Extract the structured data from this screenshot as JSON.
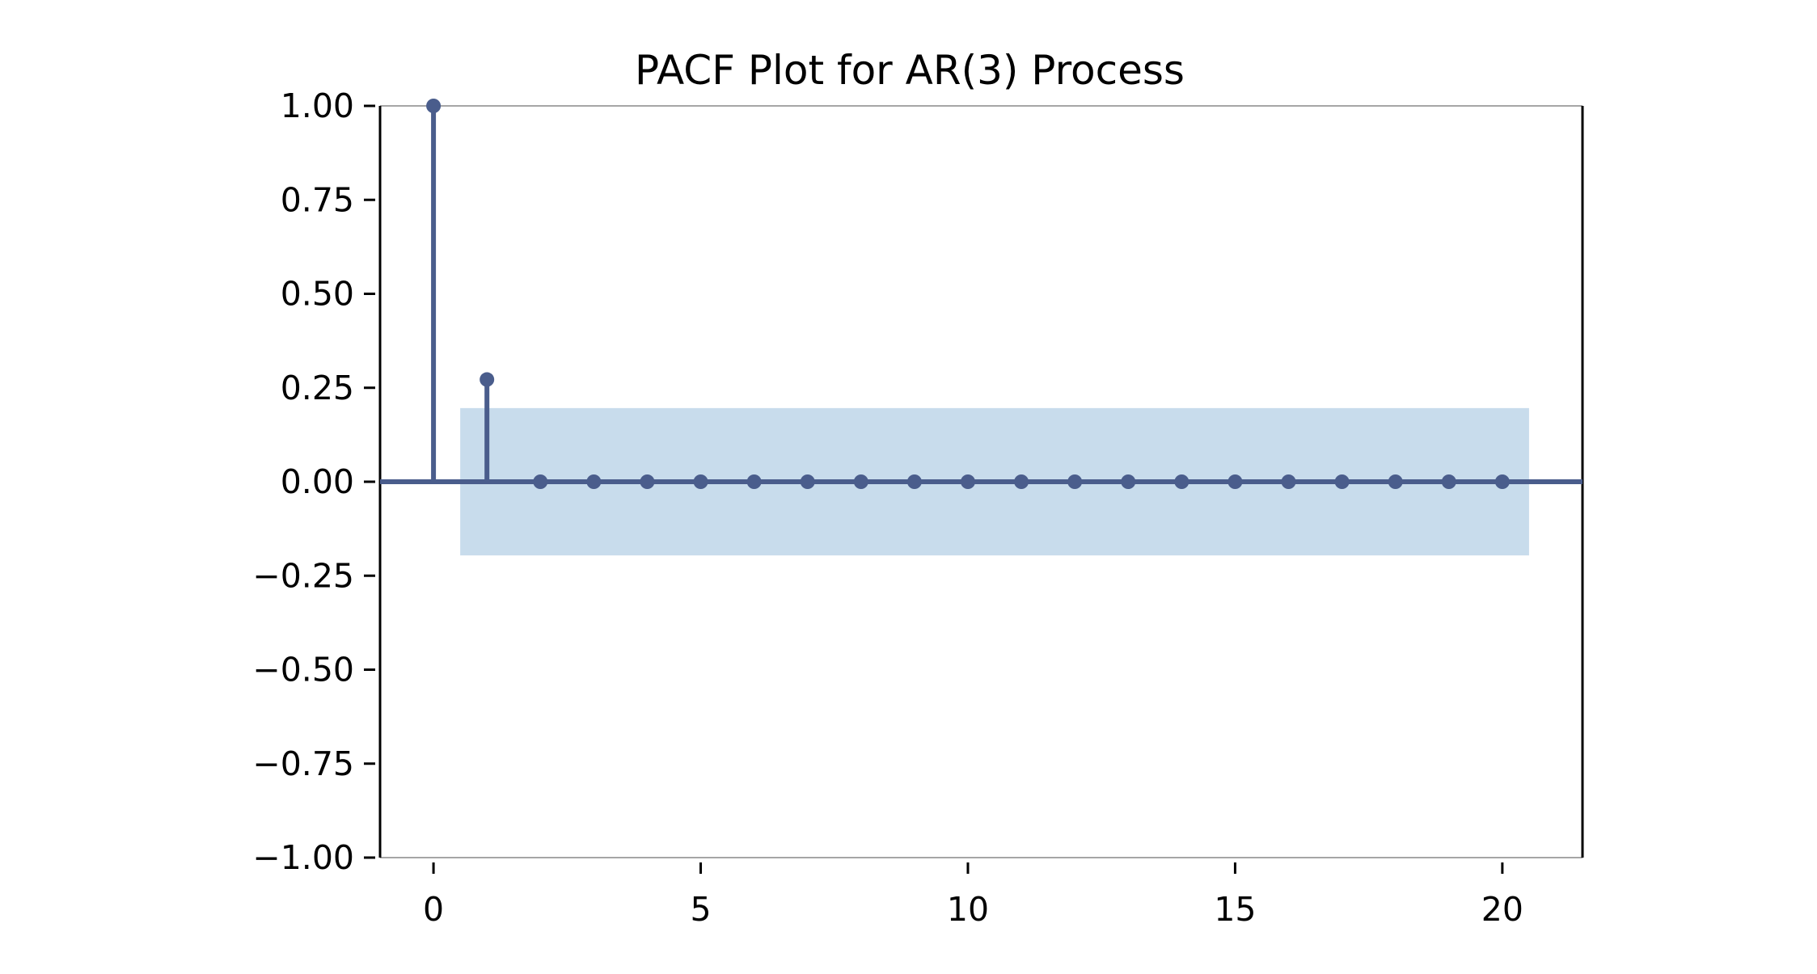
{
  "chart_data": {
    "type": "stem",
    "title": "PACF Plot for AR(3) Process",
    "xlabel": "",
    "ylabel": "",
    "x": [
      0,
      1,
      2,
      3,
      4,
      5,
      6,
      7,
      8,
      9,
      10,
      11,
      12,
      13,
      14,
      15,
      16,
      17,
      18,
      19,
      20
    ],
    "values": [
      1.0,
      0.272,
      0.0,
      0.0,
      0.0,
      0.0,
      0.0,
      0.0,
      0.0,
      0.0,
      0.0,
      0.0,
      0.0,
      0.0,
      0.0,
      0.0,
      0.0,
      0.0,
      0.0,
      0.0,
      0.0
    ],
    "confidence_band": {
      "x_range": [
        0.5,
        20.5
      ],
      "lower": -0.196,
      "upper": 0.196
    },
    "xlim": [
      -1,
      21.5
    ],
    "ylim": [
      -1.0,
      1.0
    ],
    "xticks": [
      0,
      5,
      10,
      15,
      20
    ],
    "xtick_labels": [
      "0",
      "5",
      "10",
      "15",
      "20"
    ],
    "yticks": [
      1.0,
      0.75,
      0.5,
      0.25,
      0.0,
      -0.25,
      -0.5,
      -0.75,
      -1.0
    ],
    "ytick_labels": [
      "1.00",
      "0.75",
      "0.50",
      "0.25",
      "0.00",
      "−0.25",
      "−0.50",
      "−0.75",
      "−1.00"
    ],
    "grid": false,
    "colors": {
      "stem": "#4a5d8c",
      "band": "#c8dcec",
      "axis": "#000000",
      "frame_top": "#888888"
    }
  }
}
